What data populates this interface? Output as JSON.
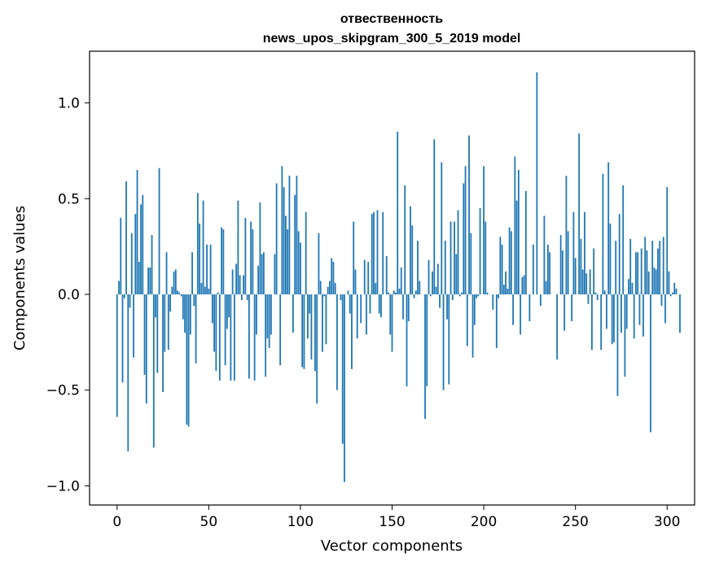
{
  "chart_data": {
    "type": "bar",
    "title": "отвественность",
    "subtitle": "news_upos_skipgram_300_5_2019 model",
    "xlabel": "Vector components",
    "ylabel": "Components values",
    "xlim": [
      -15,
      315
    ],
    "ylim": [
      -1.1,
      1.27
    ],
    "xticks": [
      0,
      50,
      100,
      150,
      200,
      250,
      300
    ],
    "yticks": [
      -1.0,
      -0.5,
      0.0,
      0.5,
      1.0
    ],
    "ytick_labels": [
      "−1.0",
      "−0.5",
      "0.0",
      "0.5",
      "1.0"
    ],
    "bar_color": "#1f77b4",
    "grid": false,
    "legend": "none",
    "values": [
      -0.64,
      0.07,
      0.4,
      -0.46,
      -0.02,
      0.59,
      -0.82,
      -0.07,
      0.32,
      -0.33,
      0.42,
      0.65,
      0.17,
      0.47,
      0.52,
      -0.42,
      -0.57,
      0.14,
      0.14,
      0.31,
      -0.8,
      -0.12,
      -0.41,
      0.66,
      0.0,
      -0.51,
      -0.3,
      0.22,
      -0.29,
      -0.09,
      0.04,
      0.12,
      0.13,
      0.02,
      0.01,
      -0.01,
      -0.13,
      -0.2,
      -0.68,
      -0.69,
      -0.21,
      0.22,
      -0.06,
      -0.36,
      0.53,
      0.37,
      0.06,
      0.49,
      0.04,
      0.26,
      0.03,
      0.26,
      -0.15,
      -0.3,
      -0.4,
      0.01,
      -0.45,
      0.35,
      0.34,
      -0.37,
      -0.18,
      -0.12,
      -0.45,
      0.13,
      -0.45,
      0.16,
      0.49,
      0.1,
      -0.03,
      0.1,
      0.4,
      -0.03,
      -0.44,
      0.38,
      0.34,
      -0.45,
      -0.21,
      0.15,
      0.48,
      0.21,
      0.22,
      -0.43,
      -0.23,
      -0.28,
      -0.21,
      0.0,
      0.21,
      0.58,
      0.0,
      -0.37,
      0.67,
      0.56,
      0.41,
      0.34,
      0.62,
      0.0,
      -0.2,
      0.52,
      0.62,
      0.33,
      0.27,
      -0.38,
      -0.39,
      0.43,
      -0.23,
      -0.1,
      -0.34,
      0.0,
      -0.4,
      -0.57,
      0.32,
      0.07,
      -0.3,
      -0.01,
      -0.26,
      0.04,
      0.07,
      0.19,
      0.17,
      0.06,
      -0.5,
      0.0,
      -0.03,
      -0.78,
      -0.98,
      0.0,
      0.02,
      -0.1,
      -0.39,
      0.38,
      0.13,
      -0.23,
      0.0,
      -0.15,
      0.0,
      0.18,
      -0.21,
      0.17,
      -0.1,
      0.42,
      0.43,
      0.06,
      0.44,
      -0.1,
      -0.12,
      0.43,
      0.0,
      0.2,
      0.01,
      -0.21,
      -0.3,
      0.02,
      0.01,
      0.85,
      0.03,
      0.14,
      -0.13,
      0.57,
      -0.48,
      -0.14,
      0.46,
      0.36,
      -0.02,
      0.02,
      0.28,
      0.07,
      0.0,
      0.0,
      -0.65,
      -0.48,
      0.18,
      -0.01,
      0.12,
      0.81,
      0.04,
      0.16,
      -0.07,
      0.69,
      -0.5,
      0.28,
      -0.13,
      -0.47,
      0.38,
      -0.03,
      0.38,
      0.21,
      0.44,
      -0.01,
      0.01,
      0.58,
      0.67,
      -0.27,
      0.83,
      0.32,
      -0.33,
      -0.16,
      -0.02,
      -0.01,
      0.45,
      0.0,
      0.67,
      0.38,
      0.01,
      0.0,
      0.0,
      -0.08,
      0.0,
      -0.28,
      -0.02,
      0.3,
      0.26,
      0.05,
      0.12,
      0.03,
      0.35,
      0.33,
      -0.16,
      0.72,
      0.49,
      0.65,
      -0.21,
      0.09,
      0.1,
      0.54,
      0.0,
      -0.14,
      0.0,
      0.26,
      0.0,
      1.16,
      0.0,
      -0.06,
      0.0,
      0.41,
      0.07,
      0.26,
      0.22,
      0.0,
      0.0,
      0.0,
      -0.34,
      0.0,
      0.31,
      0.23,
      -0.19,
      0.62,
      0.33,
      0.0,
      -0.14,
      0.43,
      0.19,
      0.0,
      0.84,
      0.29,
      0.13,
      0.43,
      0.11,
      -0.05,
      0.13,
      -0.29,
      0.24,
      0.01,
      -0.03,
      0.0,
      -0.29,
      0.63,
      0.02,
      -0.18,
      0.69,
      0.37,
      -0.26,
      -0.25,
      0.28,
      -0.53,
      0.42,
      -0.2,
      0.57,
      -0.43,
      -0.18,
      0.08,
      0.29,
      0.06,
      -0.23,
      0.22,
      0.22,
      -0.16,
      0.24,
      -0.22,
      0.3,
      0.23,
      0.12,
      -0.72,
      0.28,
      0.14,
      0.13,
      0.24,
      0.28,
      -0.06,
      0.3,
      -0.15,
      0.56,
      0.12,
      -0.01,
      0.01,
      0.06,
      0.03,
      0.0,
      -0.2
    ]
  }
}
